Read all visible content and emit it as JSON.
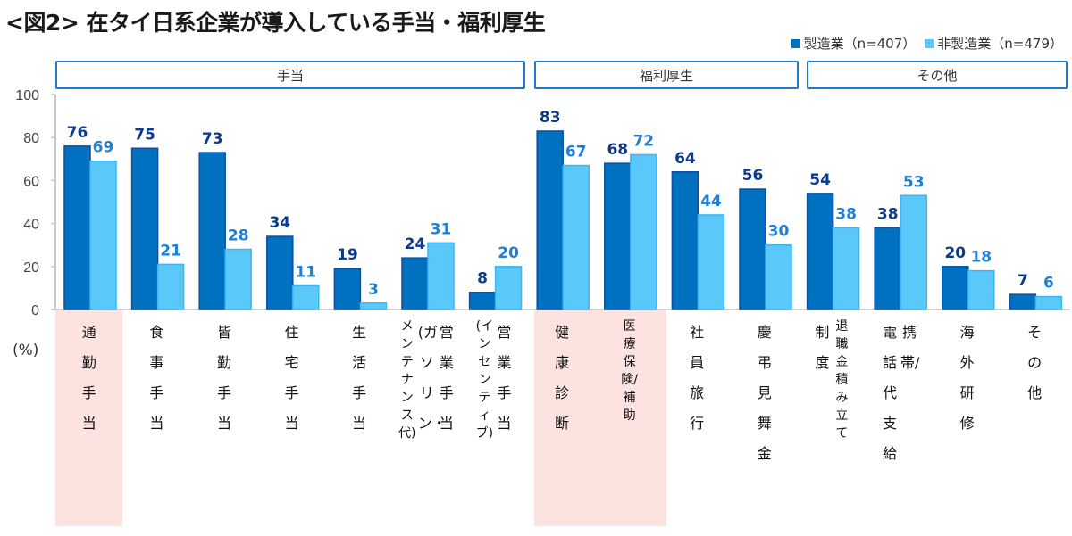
{
  "chart_data": {
    "type": "bar",
    "title": "<図2> 在タイ日系企業が導入している手当・福利厚生",
    "ylabel": "(%)",
    "xlabel": "",
    "ylim": [
      0,
      100
    ],
    "yticks": [
      "0",
      "20",
      "40",
      "60",
      "80",
      "100"
    ],
    "legend_position": "top-right",
    "groups": [
      {
        "label": "手当",
        "start": 0,
        "end": 6
      },
      {
        "label": "福利厚生",
        "start": 7,
        "end": 9
      },
      {
        "label": "その他",
        "start": 10,
        "end": 11
      }
    ],
    "categories": [
      "通勤手当",
      "食事手当",
      "皆勤手当",
      "住宅手当",
      "生活手当",
      "営業手当(ガソリン・メンテナンス代)",
      "営業手当(インセンティブ)",
      "健康診断",
      "医療保険/補助",
      "社員旅行",
      "慶弔見舞金",
      "制度退職金積み立て",
      "携帯/電話代支給",
      "海外研修",
      "その他"
    ],
    "series": [
      {
        "name": "製造業（n=407）",
        "color": "#0070c0",
        "values": [
          76,
          75,
          73,
          34,
          19,
          24,
          8,
          83,
          68,
          64,
          56,
          54,
          38,
          20,
          7
        ]
      },
      {
        "name": "非製造業（n=479）",
        "color": "#5bc8fa",
        "values": [
          69,
          21,
          28,
          11,
          3,
          31,
          20,
          67,
          72,
          44,
          30,
          38,
          53,
          18,
          6
        ]
      }
    ],
    "highlighted_categories": [
      "通勤手当",
      "健康診断",
      "医療保険/補助"
    ]
  },
  "title": "<図2> 在タイ日系企業が導入している手当・福利厚生",
  "legend": {
    "manufacturing": "製造業（n=407）",
    "non_manufacturing": "非製造業（n=479）"
  },
  "category_boxes": {
    "allowance": "手当",
    "welfare": "福利厚生",
    "other": "その他"
  },
  "unit_label": "(%)",
  "xlabels": [
    [
      "通勤手当"
    ],
    [
      "食事手当"
    ],
    [
      "皆勤手当"
    ],
    [
      "住宅手当"
    ],
    [
      "生活手当"
    ],
    [
      "メンテナンス代)",
      "(ガソリン・",
      "営業手当"
    ],
    [
      "(インセンティブ)",
      "営業手当"
    ],
    [
      "健康診断"
    ],
    [
      "医療保険/補助"
    ],
    [
      "社員旅行"
    ],
    [
      "慶弔見舞金"
    ],
    [
      "制度",
      "退職金積み立て"
    ],
    [
      "電話代支給",
      "携帯/"
    ],
    [
      "海外研修"
    ],
    [
      "その他"
    ]
  ]
}
